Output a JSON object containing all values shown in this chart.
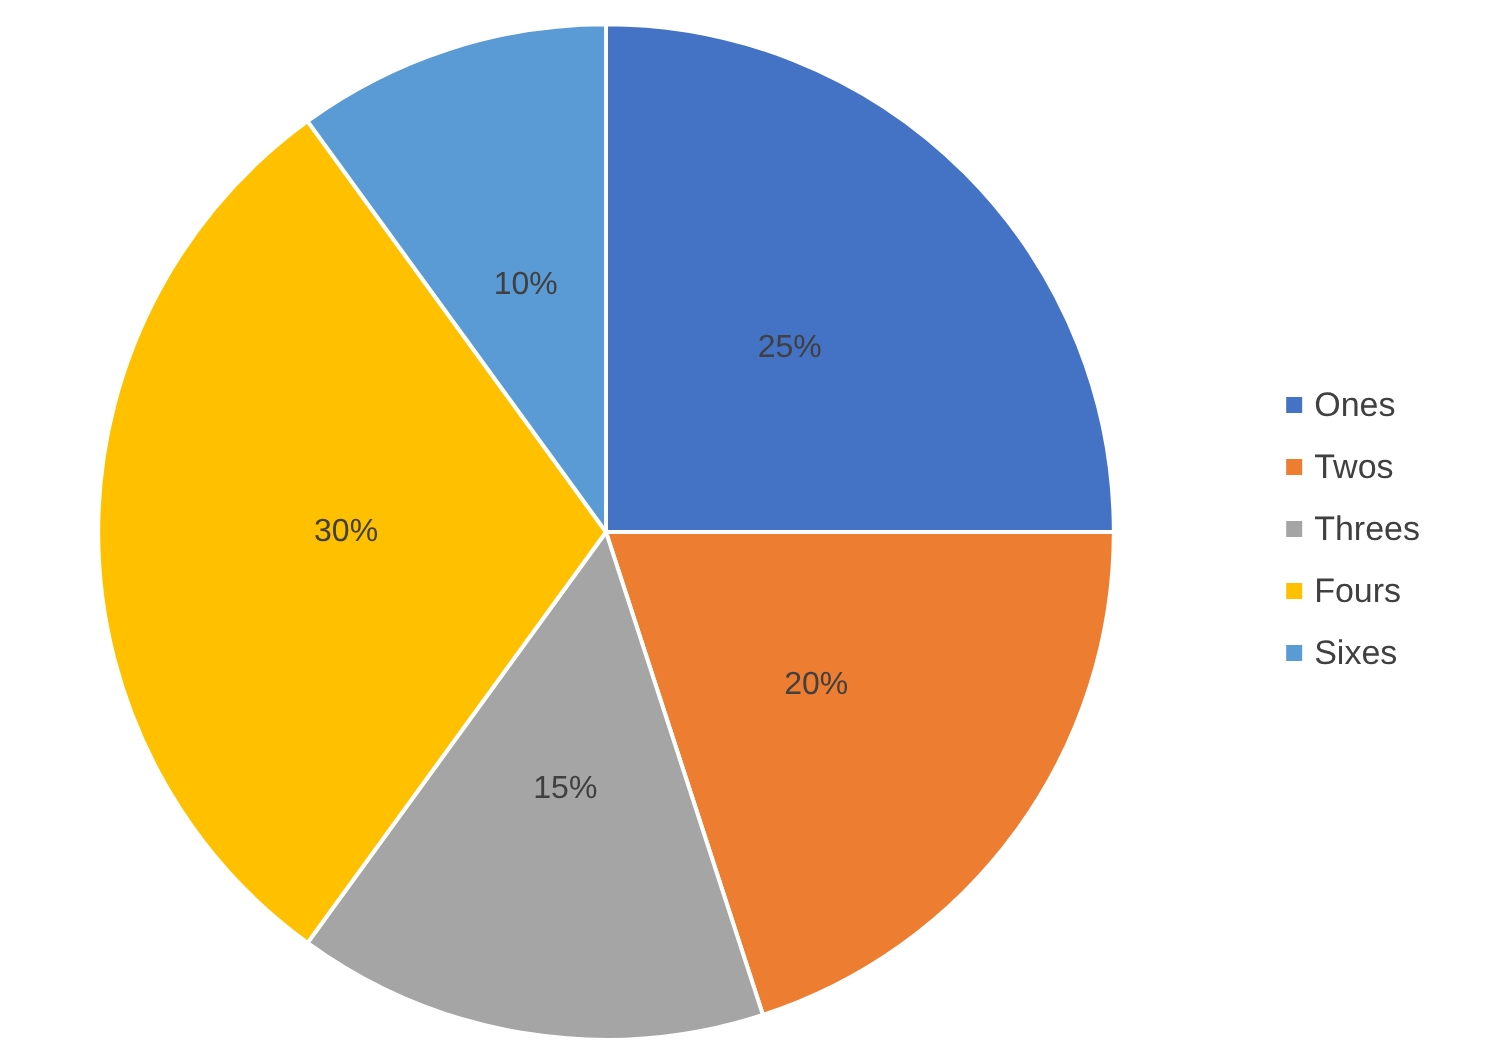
{
  "chart_data": {
    "type": "pie",
    "categories": [
      "Ones",
      "Twos",
      "Threes",
      "Fours",
      "Sixes"
    ],
    "values": [
      25,
      20,
      15,
      30,
      10
    ],
    "colors": [
      "#4472c4",
      "#ed7d31",
      "#a5a5a5",
      "#ffc000",
      "#5b9bd5"
    ],
    "value_labels": [
      "25%",
      "20%",
      "15%",
      "30%",
      "10%"
    ],
    "legend": "right"
  }
}
